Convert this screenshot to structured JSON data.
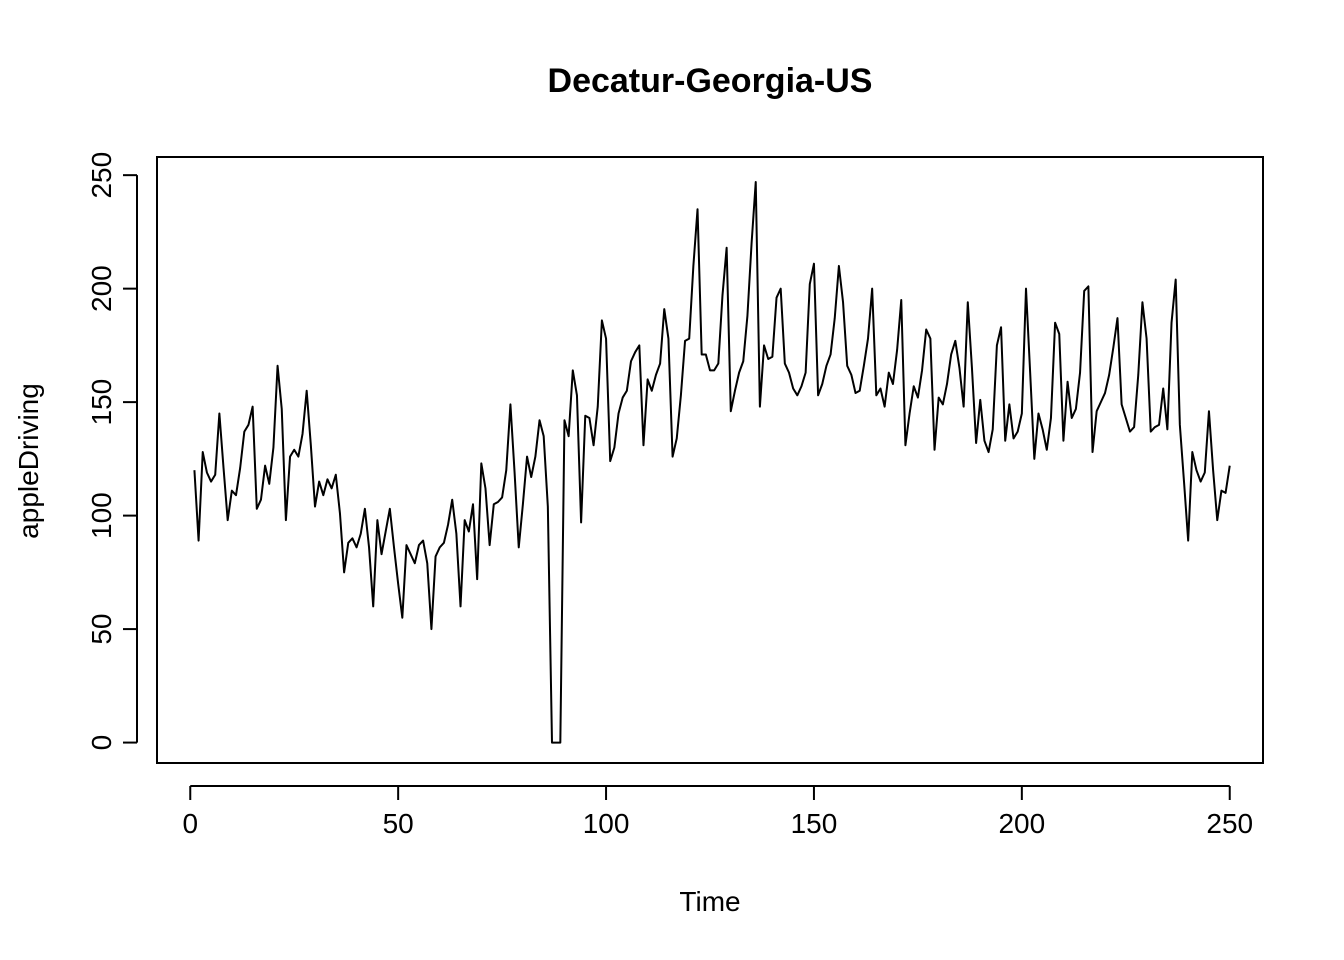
{
  "chart_data": {
    "type": "line",
    "title": "Decatur-Georgia-US",
    "xlabel": "Time",
    "ylabel": "appleDriving",
    "xlim": [
      -8,
      258
    ],
    "ylim": [
      -9,
      258
    ],
    "xticks": [
      0,
      50,
      100,
      150,
      200,
      250
    ],
    "yticks": [
      0,
      50,
      100,
      150,
      200,
      250
    ],
    "grid": false,
    "legend": "none",
    "series": [
      {
        "color": "#000000",
        "values": [
          120,
          89,
          128,
          119,
          115,
          118,
          145,
          121,
          98,
          111,
          109,
          121,
          137,
          140,
          148,
          103,
          107,
          122,
          114,
          130,
          166,
          147,
          98,
          126,
          129,
          126,
          136,
          155,
          131,
          104,
          115,
          109,
          116,
          112,
          118,
          101,
          75,
          88,
          90,
          86,
          92,
          103,
          86,
          60,
          98,
          83,
          93,
          103,
          86,
          70,
          55,
          87,
          83,
          79,
          87,
          89,
          79,
          50,
          82,
          86,
          88,
          96,
          107,
          92,
          60,
          98,
          93,
          105,
          72,
          123,
          112,
          87,
          105,
          106,
          108,
          120,
          149,
          119,
          86,
          105,
          126,
          117,
          126,
          142,
          135,
          104,
          0,
          0,
          0,
          142,
          135,
          164,
          153,
          97,
          144,
          143,
          131,
          148,
          186,
          178,
          124,
          130,
          145,
          152,
          155,
          168,
          172,
          175,
          131,
          160,
          155,
          162,
          167,
          191,
          178,
          126,
          134,
          153,
          177,
          178,
          210,
          235,
          171,
          171,
          164,
          164,
          167,
          197,
          218,
          146,
          155,
          163,
          168,
          188,
          220,
          247,
          148,
          175,
          169,
          170,
          196,
          200,
          167,
          163,
          156,
          153,
          157,
          163,
          202,
          211,
          153,
          158,
          166,
          171,
          187,
          210,
          194,
          166,
          162,
          154,
          155,
          166,
          178,
          200,
          153,
          156,
          148,
          163,
          158,
          173,
          195,
          131,
          145,
          157,
          152,
          164,
          182,
          178,
          129,
          152,
          149,
          158,
          171,
          177,
          165,
          148,
          194,
          165,
          132,
          151,
          133,
          128,
          138,
          175,
          183,
          133,
          149,
          134,
          137,
          145,
          200,
          163,
          125,
          145,
          138,
          129,
          143,
          185,
          180,
          133,
          159,
          143,
          147,
          163,
          199,
          201,
          128,
          146,
          150,
          154,
          162,
          174,
          187,
          149,
          143,
          137,
          139,
          162,
          194,
          178,
          137,
          139,
          140,
          156,
          138,
          185,
          204,
          140,
          115,
          89,
          128,
          120,
          115,
          119,
          146,
          120,
          98,
          111,
          110,
          122
        ]
      }
    ]
  }
}
